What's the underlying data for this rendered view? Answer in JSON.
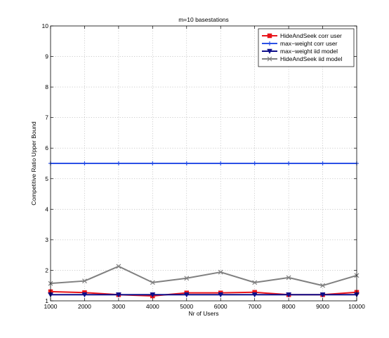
{
  "chart_data": {
    "type": "line",
    "title": "m=10 basestations",
    "xlabel": "Nr of Users",
    "ylabel": "Competitive Ratio Upper Bound",
    "x": [
      1000,
      2000,
      3000,
      4000,
      5000,
      6000,
      7000,
      8000,
      9000,
      10000
    ],
    "xlim": [
      1000,
      10000
    ],
    "ylim": [
      1,
      10
    ],
    "xticks": [
      "1000",
      "2000",
      "3000",
      "4000",
      "5000",
      "6000",
      "7000",
      "8000",
      "9000",
      "10000"
    ],
    "yticks": [
      "1",
      "2",
      "3",
      "4",
      "5",
      "6",
      "7",
      "8",
      "9",
      "10"
    ],
    "grid": true,
    "legend_position": "top-right",
    "series": [
      {
        "name": "HideAndSeek corr user",
        "color": "#e8141a",
        "marker": "square",
        "values": [
          1.3,
          1.27,
          1.2,
          1.16,
          1.26,
          1.26,
          1.28,
          1.2,
          1.2,
          1.28
        ]
      },
      {
        "name": "max−weight corr user",
        "color": "#2b51e6",
        "marker": "plus",
        "values": [
          5.5,
          5.5,
          5.5,
          5.5,
          5.5,
          5.5,
          5.5,
          5.5,
          5.5,
          5.5
        ]
      },
      {
        "name": "max−weight iid model",
        "color": "#0e0e8a",
        "marker": "triangle-down",
        "values": [
          1.2,
          1.2,
          1.2,
          1.2,
          1.2,
          1.2,
          1.2,
          1.2,
          1.2,
          1.2
        ]
      },
      {
        "name": "HideAndSeek iid model",
        "color": "#808080",
        "marker": "x",
        "values": [
          1.57,
          1.65,
          2.13,
          1.6,
          1.74,
          1.94,
          1.6,
          1.76,
          1.5,
          1.83
        ]
      }
    ]
  }
}
